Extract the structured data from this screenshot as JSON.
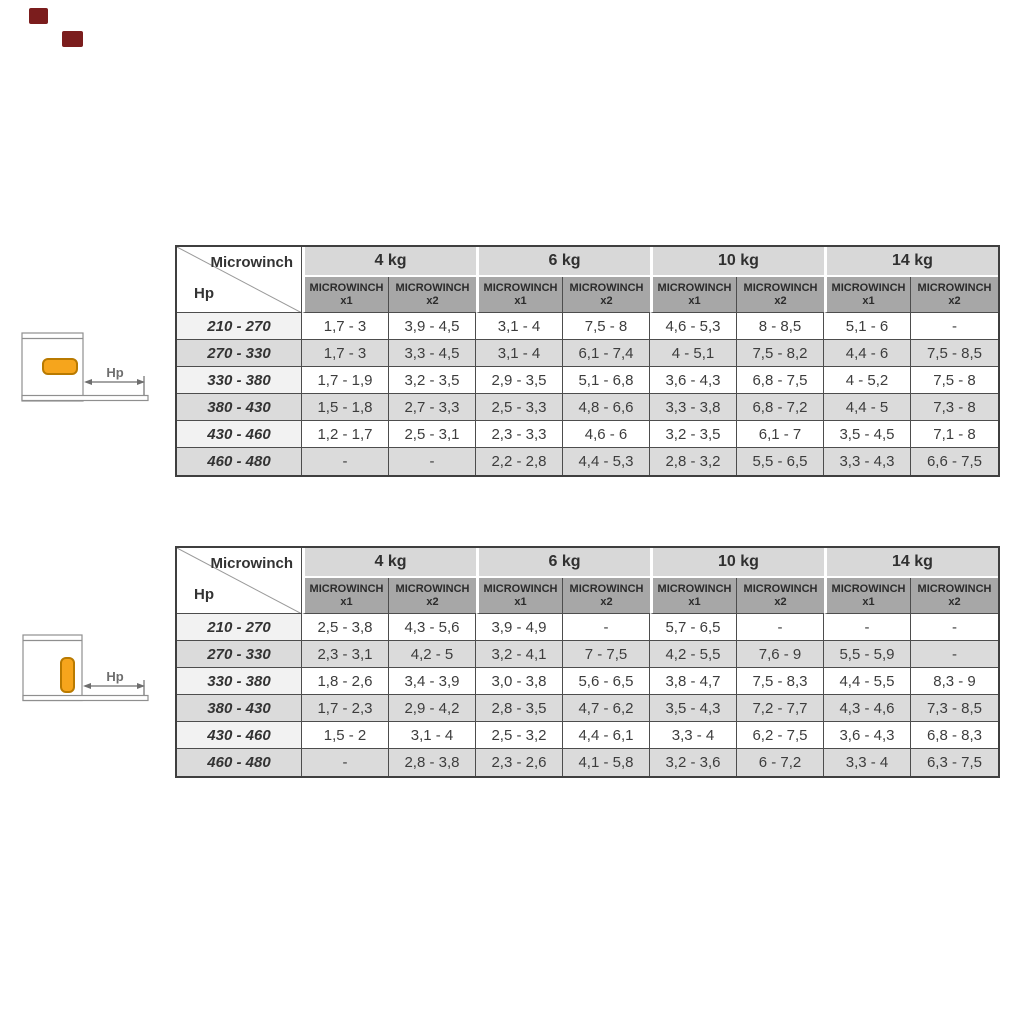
{
  "marks": {
    "color": "#7b1d1d"
  },
  "style": {
    "kg_header_bg": "#d8d8d8",
    "subheader_bg": "#a7a7a7",
    "row_alt_bg": "#dbdbdb",
    "border_color": "#4d4d4d",
    "winch_color": "#f6a51c",
    "winch_border": "#b97a00",
    "diagram_line_color": "#8f8f8f"
  },
  "diagrams": [
    {
      "name": "microwinch-horizontal-mount",
      "dimension_label": "Hp"
    },
    {
      "name": "microwinch-vertical-mount",
      "dimension_label": "Hp"
    }
  ],
  "tables": [
    {
      "corner_top": "Microwinch",
      "corner_bottom": "Hp",
      "load_groups": [
        "4 kg",
        "6 kg",
        "10 kg",
        "14 kg"
      ],
      "subheader_title": "MICROWINCH",
      "subheader_variants": [
        "x1",
        "x2"
      ],
      "rows": [
        {
          "hp": "210 - 270",
          "values": [
            "1,7 - 3",
            "3,9 - 4,5",
            "3,1 - 4",
            "7,5 - 8",
            "4,6 - 5,3",
            "8 - 8,5",
            "5,1 - 6",
            "-"
          ]
        },
        {
          "hp": "270 - 330",
          "values": [
            "1,7 - 3",
            "3,3 - 4,5",
            "3,1 - 4",
            "6,1 - 7,4",
            "4 - 5,1",
            "7,5 - 8,2",
            "4,4 - 6",
            "7,5 - 8,5"
          ]
        },
        {
          "hp": "330 - 380",
          "values": [
            "1,7 - 1,9",
            "3,2 - 3,5",
            "2,9 - 3,5",
            "5,1 - 6,8",
            "3,6 - 4,3",
            "6,8 - 7,5",
            "4 - 5,2",
            "7,5 - 8"
          ]
        },
        {
          "hp": "380 - 430",
          "values": [
            "1,5 - 1,8",
            "2,7 - 3,3",
            "2,5 - 3,3",
            "4,8 - 6,6",
            "3,3 - 3,8",
            "6,8 - 7,2",
            "4,4 - 5",
            "7,3 - 8"
          ]
        },
        {
          "hp": "430 - 460",
          "values": [
            "1,2 - 1,7",
            "2,5 - 3,1",
            "2,3 - 3,3",
            "4,6 - 6",
            "3,2 - 3,5",
            "6,1 - 7",
            "3,5 - 4,5",
            "7,1 - 8"
          ]
        },
        {
          "hp": "460 - 480",
          "values": [
            "-",
            "-",
            "2,2 - 2,8",
            "4,4 - 5,3",
            "2,8 - 3,2",
            "5,5 - 6,5",
            "3,3 - 4,3",
            "6,6 - 7,5"
          ]
        }
      ]
    },
    {
      "corner_top": "Microwinch",
      "corner_bottom": "Hp",
      "load_groups": [
        "4 kg",
        "6 kg",
        "10 kg",
        "14 kg"
      ],
      "subheader_title": "MICROWINCH",
      "subheader_variants": [
        "x1",
        "x2"
      ],
      "rows": [
        {
          "hp": "210 - 270",
          "values": [
            "2,5 - 3,8",
            "4,3 - 5,6",
            "3,9 - 4,9",
            "-",
            "5,7 - 6,5",
            "-",
            "-",
            "-"
          ]
        },
        {
          "hp": "270 - 330",
          "values": [
            "2,3 - 3,1",
            "4,2 - 5",
            "3,2 - 4,1",
            "7 - 7,5",
            "4,2 - 5,5",
            "7,6 - 9",
            "5,5 - 5,9",
            "-"
          ]
        },
        {
          "hp": "330 - 380",
          "values": [
            "1,8 - 2,6",
            "3,4 - 3,9",
            "3,0 - 3,8",
            "5,6 - 6,5",
            "3,8 - 4,7",
            "7,5 - 8,3",
            "4,4 - 5,5",
            "8,3 - 9"
          ]
        },
        {
          "hp": "380 - 430",
          "values": [
            "1,7 - 2,3",
            "2,9 - 4,2",
            "2,8 - 3,5",
            "4,7 - 6,2",
            "3,5 - 4,3",
            "7,2 - 7,7",
            "4,3 - 4,6",
            "7,3 - 8,5"
          ]
        },
        {
          "hp": "430 - 460",
          "values": [
            "1,5 - 2",
            "3,1 - 4",
            "2,5 - 3,2",
            "4,4 - 6,1",
            "3,3 - 4",
            "6,2 - 7,5",
            "3,6 - 4,3",
            "6,8 - 8,3"
          ]
        },
        {
          "hp": "460 - 480",
          "values": [
            "-",
            "2,8 - 3,8",
            "2,3 - 2,6",
            "4,1 - 5,8",
            "3,2 - 3,6",
            "6 - 7,2",
            "3,3 - 4",
            "6,3 - 7,5"
          ]
        }
      ]
    }
  ]
}
